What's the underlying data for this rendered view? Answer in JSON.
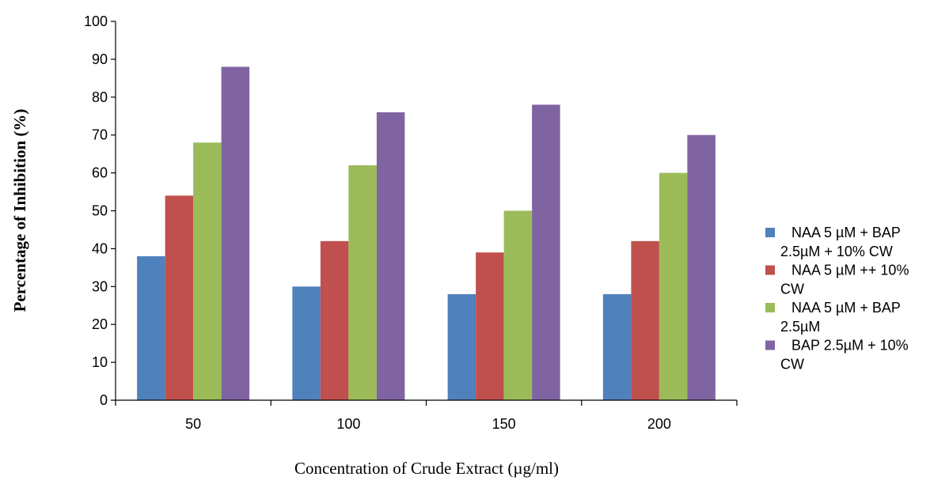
{
  "chart_data": {
    "type": "bar",
    "title": "",
    "xlabel": "Concentration of Crude Extract (µg/ml)",
    "ylabel": "Percentage of Inhibition (%)",
    "ylim": [
      0,
      100
    ],
    "yticks": [
      0,
      10,
      20,
      30,
      40,
      50,
      60,
      70,
      80,
      90,
      100
    ],
    "categories": [
      "50",
      "100",
      "150",
      "200"
    ],
    "grid": false,
    "legend_position": "right",
    "series": [
      {
        "name": "NAA 5 µM +  BAP 2.5µM + 10% CW",
        "legend_lines": [
          "NAA 5 µM +  BAP",
          "2.5µM + 10% CW"
        ],
        "color": "#4f81bd",
        "values": [
          38,
          30,
          28,
          28
        ]
      },
      {
        "name": "NAA 5 µM ++ 10% CW",
        "legend_lines": [
          "NAA 5 µM ++ 10%",
          "CW"
        ],
        "color": "#c0504d",
        "values": [
          54,
          42,
          39,
          42
        ]
      },
      {
        "name": "NAA 5 µM +  BAP 2.5µM",
        "legend_lines": [
          "NAA 5 µM +  BAP",
          "2.5µM"
        ],
        "color": "#9bbb59",
        "values": [
          68,
          62,
          50,
          60
        ]
      },
      {
        "name": " BAP 2.5µM + 10% CW",
        "legend_lines": [
          " BAP 2.5µM + 10%",
          "CW"
        ],
        "color": "#8064a2",
        "values": [
          88,
          76,
          78,
          70
        ]
      }
    ]
  }
}
